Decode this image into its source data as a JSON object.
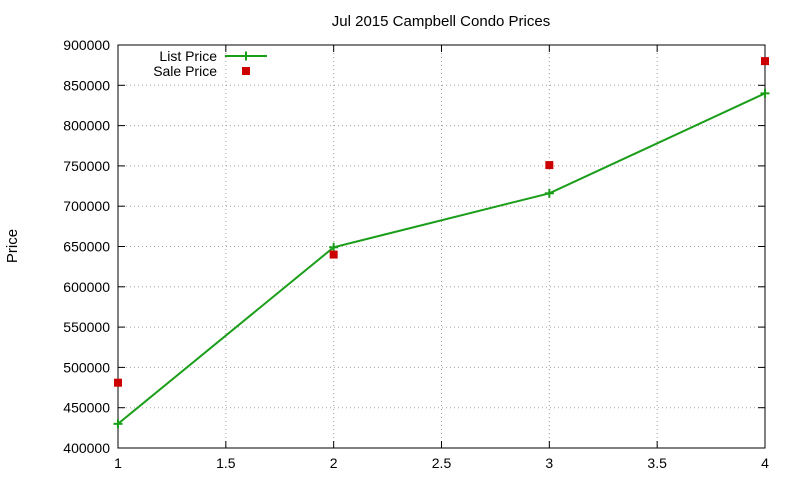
{
  "chart_data": {
    "type": "line",
    "title": "Jul 2015 Campbell Condo Prices",
    "xlabel": "",
    "ylabel": "Price",
    "xlim": [
      1,
      4
    ],
    "ylim": [
      400000,
      900000
    ],
    "xticks": [
      "1",
      "1.5",
      "2",
      "2.5",
      "3",
      "3.5",
      "4"
    ],
    "yticks": [
      "400000",
      "450000",
      "500000",
      "550000",
      "600000",
      "650000",
      "700000",
      "750000",
      "800000",
      "850000",
      "900000"
    ],
    "grid": true,
    "legend_position": "top-left",
    "series": [
      {
        "name": "List Price",
        "style": "line-points",
        "marker": "plus",
        "color": "#1a9e1a",
        "x": [
          1,
          2,
          3,
          4
        ],
        "y": [
          430000,
          649000,
          716000,
          840000
        ]
      },
      {
        "name": "Sale Price",
        "style": "points",
        "marker": "square",
        "color": "#cc0000",
        "x": [
          1,
          2,
          3,
          4
        ],
        "y": [
          481000,
          640000,
          751000,
          880000
        ]
      }
    ]
  }
}
